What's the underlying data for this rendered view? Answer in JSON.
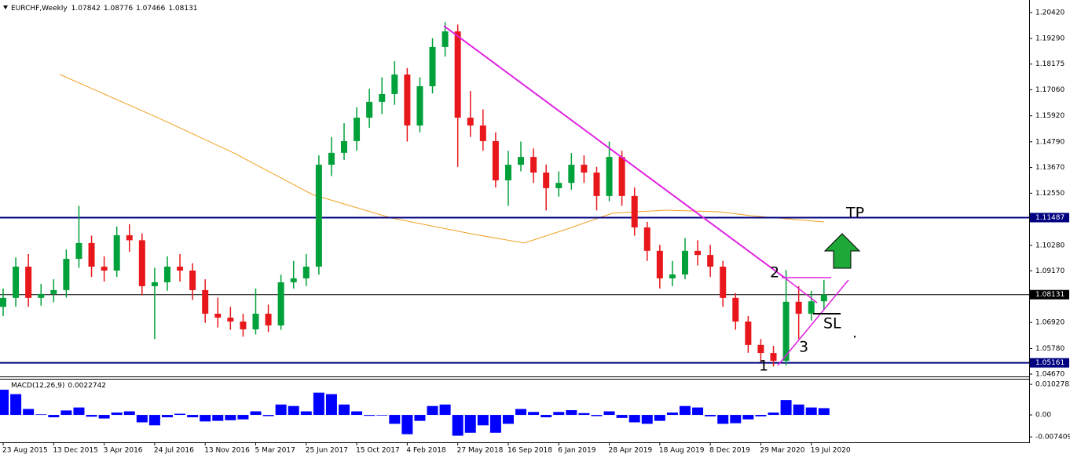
{
  "header": {
    "symbol": "EURCHF,Weekly"
  },
  "chart_data": [
    {
      "type": "candlestick",
      "x": [
        0,
        4,
        8,
        12,
        16,
        20,
        24,
        28,
        32,
        36,
        40,
        44,
        48,
        52,
        56,
        60,
        64,
        68,
        72,
        76,
        80,
        84,
        88,
        92,
        96,
        100,
        104,
        108,
        112,
        116,
        120,
        124,
        128,
        132,
        136,
        140,
        144,
        148,
        152,
        156,
        160,
        164,
        168,
        172,
        176,
        180,
        184,
        188,
        192,
        196,
        200,
        204,
        208,
        212,
        216,
        220,
        224,
        228,
        232,
        236,
        240,
        244,
        248,
        252,
        256,
        260
      ],
      "open": [
        1.076,
        1.0799,
        1.0935,
        1.0799,
        1.0816,
        1.0833,
        1.0969,
        1.1038,
        1.0935,
        1.0918,
        1.1072,
        1.105,
        1.085,
        1.0867,
        1.0935,
        1.0918,
        1.0833,
        1.073,
        1.0713,
        1.0696,
        1.0662,
        1.073,
        1.0679,
        1.0867,
        1.0884,
        1.0935,
        1.1379,
        1.1431,
        1.1482,
        1.1584,
        1.1653,
        1.1687,
        1.1772,
        1.155,
        1.1721,
        1.1892,
        1.196,
        1.1584,
        1.155,
        1.1482,
        1.1311,
        1.1379,
        1.1413,
        1.1345,
        1.1277,
        1.13,
        1.1379,
        1.1345,
        1.1243,
        1.1413,
        1.1243,
        1.1106,
        1.1004,
        1.0884,
        1.0901,
        1.1004,
        1.0986,
        1.0935,
        1.0799,
        1.0696,
        1.0594,
        1.0559,
        1.0525,
        1.0782,
        1.073,
        1.07842
      ],
      "high": [
        1.084,
        1.0975,
        1.099,
        1.086,
        1.088,
        1.101,
        1.12,
        1.107,
        1.098,
        1.111,
        1.112,
        1.108,
        1.093,
        1.098,
        1.099,
        1.095,
        1.088,
        1.08,
        1.076,
        1.073,
        1.084,
        1.077,
        1.09,
        1.096,
        1.099,
        1.142,
        1.15,
        1.156,
        1.163,
        1.171,
        1.176,
        1.183,
        1.18,
        1.176,
        1.193,
        1.2,
        1.199,
        1.17,
        1.162,
        1.152,
        1.144,
        1.148,
        1.145,
        1.138,
        1.135,
        1.143,
        1.142,
        1.137,
        1.148,
        1.144,
        1.128,
        1.113,
        1.103,
        1.096,
        1.106,
        1.105,
        1.103,
        1.096,
        1.082,
        1.072,
        1.062,
        1.059,
        1.092,
        1.085,
        1.083,
        1.08776
      ],
      "low": [
        1.072,
        1.076,
        1.076,
        1.0765,
        1.078,
        1.08,
        1.093,
        1.089,
        1.087,
        1.089,
        1.1,
        1.081,
        1.062,
        1.083,
        1.087,
        1.079,
        1.069,
        1.067,
        1.066,
        1.063,
        1.064,
        1.065,
        1.066,
        1.084,
        1.085,
        1.09,
        1.133,
        1.14,
        1.144,
        1.154,
        1.16,
        1.164,
        1.148,
        1.152,
        1.169,
        1.185,
        1.137,
        1.15,
        1.144,
        1.128,
        1.12,
        1.135,
        1.13,
        1.118,
        1.124,
        1.127,
        1.13,
        1.118,
        1.122,
        1.12,
        1.107,
        1.096,
        1.084,
        1.085,
        1.088,
        1.094,
        1.089,
        1.076,
        1.066,
        1.056,
        1.052,
        1.05,
        1.0505,
        1.062,
        1.07,
        1.07466
      ],
      "close": [
        1.0799,
        1.0935,
        1.0799,
        1.0816,
        1.0833,
        1.0969,
        1.1038,
        1.0935,
        1.0918,
        1.1072,
        1.105,
        1.085,
        1.0867,
        1.0935,
        1.0918,
        1.0833,
        1.073,
        1.0713,
        1.0696,
        1.0662,
        1.073,
        1.0679,
        1.0867,
        1.0884,
        1.0935,
        1.1379,
        1.1431,
        1.1482,
        1.1584,
        1.1653,
        1.1687,
        1.1772,
        1.155,
        1.1721,
        1.1892,
        1.196,
        1.1584,
        1.155,
        1.1482,
        1.1311,
        1.1379,
        1.1413,
        1.1345,
        1.1277,
        1.13,
        1.1379,
        1.1345,
        1.1243,
        1.1413,
        1.1243,
        1.1106,
        1.1004,
        1.0884,
        1.0901,
        1.1004,
        1.0986,
        1.0935,
        1.0799,
        1.0696,
        1.0594,
        1.0559,
        1.0525,
        1.0782,
        1.073,
        1.0784,
        1.08131
      ],
      "up_color": "#00a13a",
      "down_color": "#e8171b",
      "xlim": [
        -1,
        325
      ],
      "ylim": [
        1.04568,
        1.20967
      ],
      "xticks": [
        {
          "value": 0,
          "label": "23 Aug 2015"
        },
        {
          "value": 16,
          "label": "13 Dec 2015"
        },
        {
          "value": 32,
          "label": "3 Apr 2016"
        },
        {
          "value": 48,
          "label": "24 Jul 2016"
        },
        {
          "value": 64,
          "label": "13 Nov 2016"
        },
        {
          "value": 80,
          "label": "5 Mar 2017"
        },
        {
          "value": 96,
          "label": "25 Jun 2017"
        },
        {
          "value": 112,
          "label": "15 Oct 2017"
        },
        {
          "value": 128,
          "label": "4 Feb 2018"
        },
        {
          "value": 144,
          "label": "27 May 2018"
        },
        {
          "value": 160,
          "label": "16 Sep 2018"
        },
        {
          "value": 176,
          "label": "6 Jan 2019"
        },
        {
          "value": 192,
          "label": "28 Apr 2019"
        },
        {
          "value": 208,
          "label": "18 Aug 2019"
        },
        {
          "value": 224,
          "label": "8 Dec 2019"
        },
        {
          "value": 240,
          "label": "29 Mar 2020"
        },
        {
          "value": 256,
          "label": "19 Jul 2020"
        }
      ],
      "yticks": [
        {
          "value": 1.2042,
          "label": "1.20420"
        },
        {
          "value": 1.1929,
          "label": "1.19290"
        },
        {
          "value": 1.18175,
          "label": "1.18175"
        },
        {
          "value": 1.1706,
          "label": "1.17060"
        },
        {
          "value": 1.1592,
          "label": "1.15920"
        },
        {
          "value": 1.1479,
          "label": "1.14790"
        },
        {
          "value": 1.1367,
          "label": "1.13670"
        },
        {
          "value": 1.1255,
          "label": "1.12550"
        },
        {
          "value": 1.1028,
          "label": "1.10280"
        },
        {
          "value": 1.0917,
          "label": "1.09170"
        },
        {
          "value": 1.0692,
          "label": "1.06920"
        },
        {
          "value": 1.0578,
          "label": "1.05780"
        },
        {
          "value": 1.0467,
          "label": "1.04670"
        }
      ],
      "ma": {
        "color": "#f0a020",
        "x": [
          18,
          49,
          73,
          98,
          123,
          148,
          165,
          178,
          193,
          210,
          227,
          237,
          260
        ],
        "values": [
          1.1772,
          1.1584,
          1.1431,
          1.1249,
          1.1147,
          1.1079,
          1.1038,
          1.1096,
          1.1168,
          1.1181,
          1.1174,
          1.1157,
          1.113
        ]
      },
      "hlines": [
        {
          "value": 1.11487,
          "color": "#000080"
        },
        {
          "value": 1.08131,
          "color": "#000000"
        },
        {
          "value": 1.05161,
          "color": "#000080"
        }
      ],
      "annotations": [
        "TP",
        "2",
        "3",
        "1",
        "SL",
        "."
      ]
    },
    {
      "type": "bar",
      "title": "MACD(12,26,9)",
      "color": "#0000ff",
      "x": [
        0,
        4,
        8,
        12,
        16,
        20,
        24,
        28,
        32,
        36,
        40,
        44,
        48,
        52,
        56,
        60,
        64,
        68,
        72,
        76,
        80,
        84,
        88,
        92,
        96,
        100,
        104,
        108,
        112,
        116,
        120,
        124,
        128,
        132,
        136,
        140,
        144,
        148,
        152,
        156,
        160,
        164,
        168,
        172,
        176,
        180,
        184,
        188,
        192,
        196,
        200,
        204,
        208,
        212,
        216,
        220,
        224,
        228,
        232,
        236,
        240,
        244,
        248,
        252,
        256,
        260
      ],
      "values": [
        0.0085,
        0.007,
        0.002,
        0.0002,
        -0.0008,
        0.0015,
        0.0025,
        -0.0006,
        -0.0012,
        0.0008,
        0.0012,
        -0.0025,
        -0.0035,
        -0.0008,
        0.0004,
        -0.0008,
        -0.0022,
        -0.002,
        -0.0018,
        -0.0015,
        0.0012,
        -0.0004,
        0.0035,
        0.003,
        0.0012,
        0.0075,
        0.007,
        0.0035,
        0.0012,
        -0.0003,
        -0.0002,
        -0.003,
        -0.0065,
        -0.002,
        0.003,
        0.0035,
        -0.007,
        -0.006,
        -0.0035,
        -0.006,
        -0.003,
        0.002,
        0.001,
        -0.0008,
        0.001,
        0.0016,
        0.0006,
        -0.0004,
        0.0012,
        -0.001,
        -0.0025,
        -0.003,
        -0.002,
        0.0008,
        0.003,
        0.0025,
        -0.0005,
        -0.003,
        -0.0028,
        -0.0015,
        -0.0005,
        0.0008,
        0.005,
        0.0035,
        0.0025,
        0.0022742
      ],
      "ylim": [
        -0.0087,
        0.0119
      ],
      "yticks": [
        0.0102782,
        {
          "value": 0,
          "label": "0.00"
        },
        -0.007409
      ]
    }
  ]
}
